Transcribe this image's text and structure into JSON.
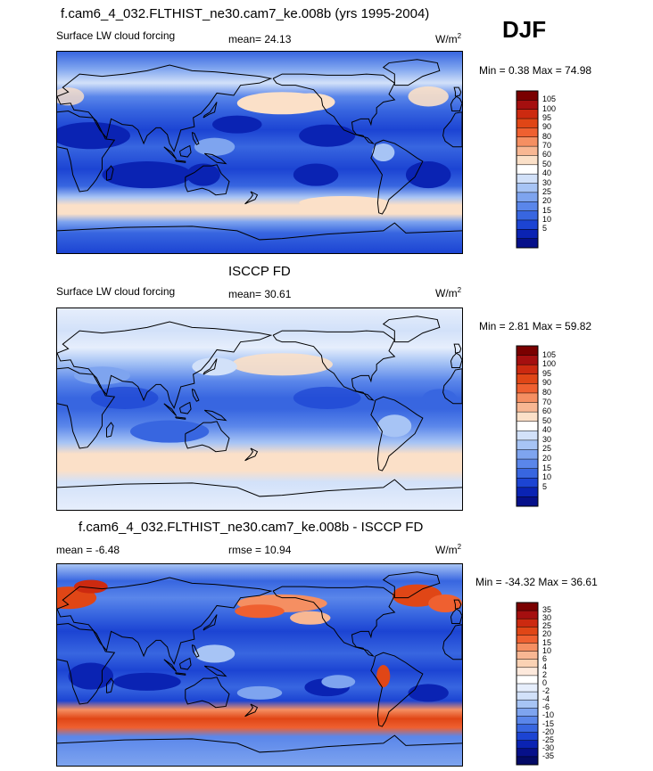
{
  "season": "DJF",
  "panels": [
    {
      "title": "f.cam6_4_032.FLTHIST_ne30.cam7_ke.008b (yrs 1995-2004)",
      "left_label": "Surface LW cloud forcing",
      "center_label": "mean=  24.13",
      "units": "W/m",
      "units_sup": "2",
      "minmax": "Min =   0.38 Max =  74.98",
      "colorbar": {
        "levels": [
          "105",
          "100",
          "95",
          "90",
          "80",
          "70",
          "60",
          "50",
          "40",
          "30",
          "25",
          "20",
          "15",
          "10",
          "5"
        ],
        "colors": [
          "#7a0000",
          "#a50f0f",
          "#cc2a10",
          "#e04616",
          "#ef6030",
          "#f58f62",
          "#f8b793",
          "#fbe0c8",
          "#ffffff",
          "#d2e1f9",
          "#a7c4f5",
          "#7ea4ef",
          "#5a86ea",
          "#3866e0",
          "#1c44d3",
          "#0a23b3",
          "#06108a"
        ]
      },
      "stats": {
        "min": 0.38,
        "max": 74.98,
        "mean": 24.13
      }
    },
    {
      "title": "ISCCP FD",
      "left_label": "Surface LW cloud forcing",
      "center_label": "mean=  30.61",
      "units": "W/m",
      "units_sup": "2",
      "minmax": "Min =   2.81 Max =  59.82",
      "colorbar": {
        "levels": [
          "105",
          "100",
          "95",
          "90",
          "80",
          "70",
          "60",
          "50",
          "40",
          "30",
          "25",
          "20",
          "15",
          "10",
          "5"
        ],
        "colors": [
          "#7a0000",
          "#a50f0f",
          "#cc2a10",
          "#e04616",
          "#ef6030",
          "#f58f62",
          "#f8b793",
          "#fbe0c8",
          "#ffffff",
          "#d2e1f9",
          "#a7c4f5",
          "#7ea4ef",
          "#5a86ea",
          "#3866e0",
          "#1c44d3",
          "#0a23b3",
          "#06108a"
        ]
      },
      "stats": {
        "min": 2.81,
        "max": 59.82,
        "mean": 30.61
      }
    },
    {
      "title": "f.cam6_4_032.FLTHIST_ne30.cam7_ke.008b - ISCCP FD",
      "left_label": "mean =  -6.48",
      "center_label": "rmse =  10.94",
      "units": "W/m",
      "units_sup": "2",
      "minmax": "Min = -34.32 Max =  36.61",
      "colorbar": {
        "levels": [
          "35",
          "30",
          "25",
          "20",
          "15",
          "10",
          "6",
          "4",
          "2",
          "0",
          "-2",
          "-4",
          "-6",
          "-10",
          "-15",
          "-20",
          "-25",
          "-30",
          "-35"
        ],
        "colors": [
          "#7a0000",
          "#a50f0f",
          "#cc2a10",
          "#e04616",
          "#ef6030",
          "#f58f62",
          "#f8b793",
          "#fbd2b4",
          "#fde9dc",
          "#ffffff",
          "#e6eefc",
          "#d2e1f9",
          "#a7c4f5",
          "#7ea4ef",
          "#5a86ea",
          "#3866e0",
          "#1c44d3",
          "#0a23b3",
          "#06108a",
          "#030a66"
        ]
      },
      "stats": {
        "min": -34.32,
        "max": 36.61,
        "mean": -6.48,
        "rmse": 10.94
      }
    }
  ],
  "chart_data": [
    {
      "type": "heatmap",
      "title": "f.cam6_4_032.FLTHIST_ne30.cam7_ke.008b (yrs 1995-2004)",
      "variable": "Surface LW cloud forcing",
      "season": "DJF",
      "units": "W/m2",
      "mean": 24.13,
      "min": 0.38,
      "max": 74.98,
      "contour_levels": [
        5,
        10,
        15,
        20,
        25,
        30,
        40,
        50,
        60,
        70,
        80,
        90,
        95,
        100,
        105
      ]
    },
    {
      "type": "heatmap",
      "title": "ISCCP FD",
      "variable": "Surface LW cloud forcing",
      "season": "DJF",
      "units": "W/m2",
      "mean": 30.61,
      "min": 2.81,
      "max": 59.82,
      "contour_levels": [
        5,
        10,
        15,
        20,
        25,
        30,
        40,
        50,
        60,
        70,
        80,
        90,
        95,
        100,
        105
      ]
    },
    {
      "type": "heatmap",
      "title": "f.cam6_4_032.FLTHIST_ne30.cam7_ke.008b - ISCCP FD",
      "season": "DJF",
      "units": "W/m2",
      "mean": -6.48,
      "rmse": 10.94,
      "min": -34.32,
      "max": 36.61,
      "contour_levels": [
        -35,
        -30,
        -25,
        -20,
        -15,
        -10,
        -6,
        -4,
        -2,
        0,
        2,
        4,
        6,
        10,
        15,
        20,
        25,
        30,
        35
      ]
    }
  ]
}
